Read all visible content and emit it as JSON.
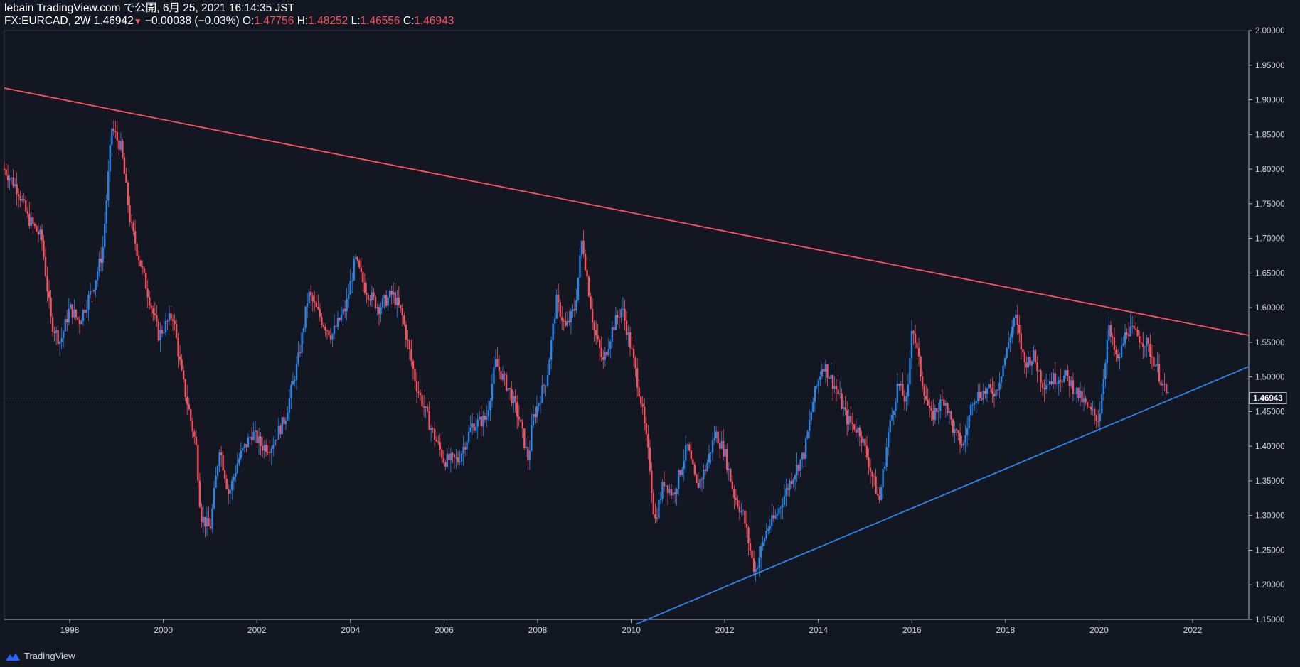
{
  "header": {
    "line1": "lebain TradingView.com で公開, 6月 25, 2021 16:14:35 JST",
    "symbol": "FX:EURCAD, 2W",
    "last": "1.46942",
    "change": "−0.00038 (−0.03%)",
    "o_label": "O:",
    "o": "1.47756",
    "h_label": "H:",
    "h": "1.48252",
    "l_label": "L:",
    "l": "1.46556",
    "c_label": "C:",
    "c": "1.46943"
  },
  "footer": {
    "brand": "TradingView"
  },
  "colors": {
    "background": "#131722",
    "up": "#2a86e8",
    "down": "#f7525f",
    "resistance": "#f7525f",
    "support": "#2a86e8"
  },
  "chart_data": {
    "type": "candlestick",
    "symbol": "FX:EURCAD",
    "interval": "2W",
    "ylim": [
      1.15,
      2.0
    ],
    "xlim": [
      1996.6,
      2023.2
    ],
    "y_ticks": [
      "2.00000",
      "1.95000",
      "1.90000",
      "1.85000",
      "1.80000",
      "1.75000",
      "1.70000",
      "1.65000",
      "1.60000",
      "1.55000",
      "1.50000",
      "1.45000",
      "1.40000",
      "1.35000",
      "1.30000",
      "1.25000",
      "1.20000",
      "1.15000"
    ],
    "x_ticks": [
      "1998",
      "2000",
      "2002",
      "2004",
      "2006",
      "2008",
      "2010",
      "2012",
      "2014",
      "2016",
      "2018",
      "2020",
      "2022"
    ],
    "last_price_label": "1.46943",
    "last_price": 1.46943,
    "price_path": [
      [
        1996.6,
        1.8
      ],
      [
        1996.9,
        1.77
      ],
      [
        1997.1,
        1.73
      ],
      [
        1997.4,
        1.7
      ],
      [
        1997.6,
        1.58
      ],
      [
        1997.8,
        1.55
      ],
      [
        1998.0,
        1.6
      ],
      [
        1998.2,
        1.58
      ],
      [
        1998.5,
        1.63
      ],
      [
        1998.7,
        1.68
      ],
      [
        1998.9,
        1.86
      ],
      [
        1999.1,
        1.83
      ],
      [
        1999.3,
        1.72
      ],
      [
        1999.6,
        1.64
      ],
      [
        1999.9,
        1.56
      ],
      [
        2000.2,
        1.59
      ],
      [
        2000.4,
        1.5
      ],
      [
        2000.7,
        1.4
      ],
      [
        2000.8,
        1.3
      ],
      [
        2001.0,
        1.28
      ],
      [
        2001.2,
        1.4
      ],
      [
        2001.4,
        1.33
      ],
      [
        2001.6,
        1.38
      ],
      [
        2001.9,
        1.42
      ],
      [
        2002.1,
        1.4
      ],
      [
        2002.3,
        1.4
      ],
      [
        2002.6,
        1.44
      ],
      [
        2002.9,
        1.53
      ],
      [
        2003.1,
        1.62
      ],
      [
        2003.4,
        1.58
      ],
      [
        2003.6,
        1.56
      ],
      [
        2003.9,
        1.6
      ],
      [
        2004.1,
        1.67
      ],
      [
        2004.3,
        1.63
      ],
      [
        2004.6,
        1.6
      ],
      [
        2004.9,
        1.62
      ],
      [
        2005.1,
        1.59
      ],
      [
        2005.4,
        1.49
      ],
      [
        2005.7,
        1.43
      ],
      [
        2006.0,
        1.38
      ],
      [
        2006.3,
        1.38
      ],
      [
        2006.6,
        1.43
      ],
      [
        2006.9,
        1.44
      ],
      [
        2007.1,
        1.52
      ],
      [
        2007.4,
        1.48
      ],
      [
        2007.6,
        1.44
      ],
      [
        2007.8,
        1.38
      ],
      [
        2007.9,
        1.44
      ],
      [
        2008.2,
        1.5
      ],
      [
        2008.4,
        1.61
      ],
      [
        2008.6,
        1.57
      ],
      [
        2008.8,
        1.6
      ],
      [
        2008.95,
        1.7
      ],
      [
        2009.2,
        1.57
      ],
      [
        2009.4,
        1.52
      ],
      [
        2009.6,
        1.57
      ],
      [
        2009.8,
        1.6
      ],
      [
        2010.0,
        1.54
      ],
      [
        2010.2,
        1.47
      ],
      [
        2010.4,
        1.37
      ],
      [
        2010.5,
        1.29
      ],
      [
        2010.7,
        1.35
      ],
      [
        2010.9,
        1.33
      ],
      [
        2011.2,
        1.4
      ],
      [
        2011.4,
        1.34
      ],
      [
        2011.6,
        1.37
      ],
      [
        2011.8,
        1.42
      ],
      [
        2012.0,
        1.39
      ],
      [
        2012.2,
        1.33
      ],
      [
        2012.4,
        1.3
      ],
      [
        2012.6,
        1.23
      ],
      [
        2012.65,
        1.22
      ],
      [
        2012.9,
        1.28
      ],
      [
        2013.1,
        1.3
      ],
      [
        2013.4,
        1.35
      ],
      [
        2013.7,
        1.39
      ],
      [
        2013.9,
        1.47
      ],
      [
        2014.1,
        1.52
      ],
      [
        2014.4,
        1.48
      ],
      [
        2014.6,
        1.44
      ],
      [
        2014.9,
        1.42
      ],
      [
        2015.1,
        1.37
      ],
      [
        2015.3,
        1.32
      ],
      [
        2015.5,
        1.42
      ],
      [
        2015.7,
        1.49
      ],
      [
        2015.9,
        1.46
      ],
      [
        2016.0,
        1.58
      ],
      [
        2016.2,
        1.5
      ],
      [
        2016.4,
        1.44
      ],
      [
        2016.7,
        1.47
      ],
      [
        2016.9,
        1.42
      ],
      [
        2017.1,
        1.4
      ],
      [
        2017.3,
        1.47
      ],
      [
        2017.6,
        1.48
      ],
      [
        2017.8,
        1.48
      ],
      [
        2018.0,
        1.53
      ],
      [
        2018.2,
        1.59
      ],
      [
        2018.4,
        1.52
      ],
      [
        2018.6,
        1.53
      ],
      [
        2018.8,
        1.49
      ],
      [
        2019.1,
        1.5
      ],
      [
        2019.3,
        1.5
      ],
      [
        2019.6,
        1.47
      ],
      [
        2019.8,
        1.45
      ],
      [
        2020.0,
        1.44
      ],
      [
        2020.2,
        1.57
      ],
      [
        2020.4,
        1.52
      ],
      [
        2020.6,
        1.57
      ],
      [
        2020.8,
        1.56
      ],
      [
        2021.0,
        1.55
      ],
      [
        2021.2,
        1.52
      ],
      [
        2021.4,
        1.48
      ],
      [
        2021.5,
        1.47
      ]
    ],
    "trendlines": [
      {
        "name": "resistance",
        "from": [
          1996.6,
          1.917
        ],
        "to": [
          2023.2,
          1.56
        ]
      },
      {
        "name": "support",
        "from": [
          2010.1,
          1.143
        ],
        "to": [
          2023.2,
          1.515
        ]
      }
    ]
  }
}
